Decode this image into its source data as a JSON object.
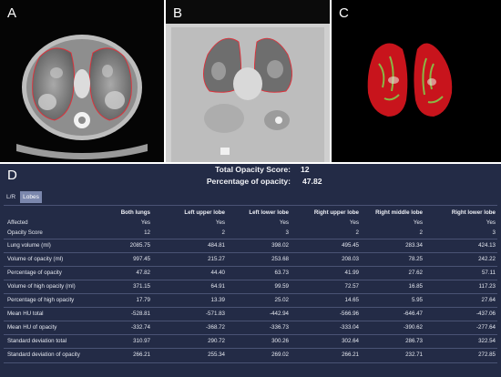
{
  "panels": {
    "a": {
      "letter": "A"
    },
    "b": {
      "letter": "B"
    },
    "c": {
      "letter": "C"
    },
    "d": {
      "letter": "D"
    }
  },
  "scores": {
    "total_opacity_label": "Total Opacity Score:",
    "total_opacity_value": "12",
    "percentage_label": "Percentage of opacity:",
    "percentage_value": "47.82"
  },
  "tabs": [
    {
      "label": "L/R",
      "active": false
    },
    {
      "label": "Lobes",
      "active": true
    }
  ],
  "table": {
    "columns": [
      "Both lungs",
      "Left upper lobe",
      "Left lower lobe",
      "Right upper lobe",
      "Right middle lobe",
      "Right lower lobe"
    ],
    "rows": [
      {
        "label": "Affected",
        "values": [
          "Yes",
          "Yes",
          "Yes",
          "Yes",
          "Yes",
          "Yes"
        ]
      },
      {
        "label": "Opacity Score",
        "values": [
          "12",
          "2",
          "3",
          "2",
          "2",
          "3"
        ]
      },
      {
        "label": "Lung volume (ml)",
        "values": [
          "2085.75",
          "484.81",
          "398.02",
          "495.45",
          "283.34",
          "424.13"
        ]
      },
      {
        "label": "Volume of opacity (ml)",
        "values": [
          "997.45",
          "215.27",
          "253.68",
          "208.03",
          "78.25",
          "242.22"
        ]
      },
      {
        "label": "Percentage of opacity",
        "values": [
          "47.82",
          "44.40",
          "63.73",
          "41.99",
          "27.62",
          "57.11"
        ]
      },
      {
        "label": "Volume of high opacity (ml)",
        "values": [
          "371.15",
          "64.91",
          "99.59",
          "72.57",
          "16.85",
          "117.23"
        ]
      },
      {
        "label": "Percentage of high opacity",
        "values": [
          "17.79",
          "13.39",
          "25.02",
          "14.65",
          "5.95",
          "27.64"
        ]
      },
      {
        "label": "Mean HU total",
        "values": [
          "-528.81",
          "-571.83",
          "-442.94",
          "-566.96",
          "-646.47",
          "-437.06"
        ]
      },
      {
        "label": "Mean HU of opacity",
        "values": [
          "-332.74",
          "-368.72",
          "-336.73",
          "-333.04",
          "-390.62",
          "-277.64"
        ]
      },
      {
        "label": "Standard deviation total",
        "values": [
          "310.97",
          "290.72",
          "300.26",
          "302.64",
          "286.73",
          "322.54"
        ]
      },
      {
        "label": "Standard deviation of opacity",
        "values": [
          "266.21",
          "255.34",
          "269.02",
          "266.21",
          "232.71",
          "272.85"
        ]
      }
    ]
  },
  "colors": {
    "table_background": "#232b46",
    "tab_active": "#7b87ad",
    "lung_outline": "#e0303a",
    "render_red": "#c8141c",
    "render_green": "#7fd44c"
  }
}
